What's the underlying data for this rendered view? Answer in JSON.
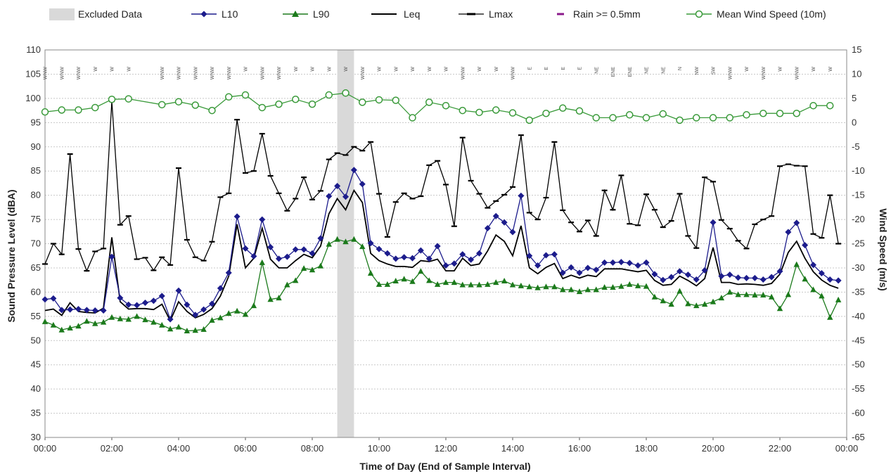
{
  "chart_data": {
    "type": "line",
    "xlabel": "Time of Day (End of Sample Interval)",
    "ylabel": "Sound Pressure Level (dBA)",
    "y2label": "Wind Speed (m/s)",
    "x_range_hours": [
      0,
      24
    ],
    "ylim": [
      30,
      110
    ],
    "y2lim": [
      -65,
      15
    ],
    "grid": true,
    "legend_position": "top",
    "x_tick_labels": [
      "00:00",
      "02:00",
      "04:00",
      "06:00",
      "08:00",
      "10:00",
      "12:00",
      "14:00",
      "16:00",
      "18:00",
      "20:00",
      "22:00",
      "00:00"
    ],
    "y_tick_labels": [
      "30",
      "35",
      "40",
      "45",
      "50",
      "55",
      "60",
      "65",
      "70",
      "75",
      "80",
      "85",
      "90",
      "95",
      "100",
      "105",
      "110"
    ],
    "y2_tick_labels": [
      "-65",
      "-60",
      "-55",
      "-50",
      "-45",
      "-40",
      "-35",
      "-30",
      "-25",
      "-20",
      "-15",
      "-10",
      "-5",
      "0",
      "5",
      "10",
      "15"
    ],
    "excluded_range_hours": [
      8.75,
      9.25
    ],
    "series": [
      {
        "name": "Excluded Data",
        "kind": "band",
        "color": "#d9d9d9"
      },
      {
        "name": "L10",
        "kind": "line",
        "marker": "diamond",
        "color": "#1c1c8c",
        "x": [
          0,
          0.25,
          0.5,
          0.75,
          1,
          1.25,
          1.5,
          1.75,
          2,
          2.25,
          2.5,
          2.75,
          3,
          3.25,
          3.5,
          3.75,
          4,
          4.25,
          4.5,
          4.75,
          5,
          5.25,
          5.5,
          5.75,
          6,
          6.25,
          6.5,
          6.75,
          7,
          7.25,
          7.5,
          7.75,
          8,
          8.25,
          8.5,
          8.75,
          9,
          9.25,
          9.5,
          9.75,
          10,
          10.25,
          10.5,
          10.75,
          11,
          11.25,
          11.5,
          11.75,
          12,
          12.25,
          12.5,
          12.75,
          13,
          13.25,
          13.5,
          13.75,
          14,
          14.25,
          14.5,
          14.75,
          15,
          15.25,
          15.5,
          15.75,
          16,
          16.25,
          16.5,
          16.75,
          17,
          17.25,
          17.5,
          17.75,
          18,
          18.25,
          18.5,
          18.75,
          19,
          19.25,
          19.5,
          19.75,
          20,
          20.25,
          20.5,
          20.75,
          21,
          21.25,
          21.5,
          21.75,
          22,
          22.25,
          22.5,
          22.75,
          23,
          23.25,
          23.5,
          23.75
        ],
        "values": [
          58.5,
          58.7,
          56.3,
          56.4,
          56.5,
          56.3,
          56.2,
          56.2,
          67.3,
          58.8,
          57.4,
          57.3,
          57.8,
          58.2,
          59.2,
          54.4,
          60.3,
          57.4,
          55.3,
          56.4,
          57.6,
          60.8,
          64.0,
          75.6,
          69.0,
          67.4,
          75.0,
          69.3,
          66.9,
          67.3,
          68.8,
          68.8,
          68.0,
          71.1,
          79.8,
          81.9,
          79.7,
          85.2,
          82.3,
          70.1,
          68.9,
          68.0,
          66.9,
          67.2,
          67.0,
          68.6,
          66.9,
          69.5,
          65.5,
          65.9,
          67.8,
          66.7,
          68.0,
          73.2,
          75.7,
          74.4,
          72.4,
          79.9,
          67.5,
          65.5,
          67.6,
          67.8,
          64.0,
          65.1,
          64.0,
          65.0,
          64.6,
          66.1,
          66.1,
          66.2,
          66.0,
          65.5,
          66.1,
          63.7,
          62.5,
          63.1,
          64.3,
          63.6,
          62.6,
          64.5,
          74.4,
          63.3,
          63.6,
          63.0,
          62.9,
          62.9,
          62.6,
          63.1,
          64.3,
          72.4,
          74.3,
          69.7,
          65.6,
          63.9,
          62.6,
          62.4
        ]
      },
      {
        "name": "L90",
        "kind": "line",
        "marker": "triangle",
        "color": "#1b7a1b",
        "x": [
          0,
          0.25,
          0.5,
          0.75,
          1,
          1.25,
          1.5,
          1.75,
          2,
          2.25,
          2.5,
          2.75,
          3,
          3.25,
          3.5,
          3.75,
          4,
          4.25,
          4.5,
          4.75,
          5,
          5.25,
          5.5,
          5.75,
          6,
          6.25,
          6.5,
          6.75,
          7,
          7.25,
          7.5,
          7.75,
          8,
          8.25,
          8.5,
          8.75,
          9,
          9.25,
          9.5,
          9.75,
          10,
          10.25,
          10.5,
          10.75,
          11,
          11.25,
          11.5,
          11.75,
          12,
          12.25,
          12.5,
          12.75,
          13,
          13.25,
          13.5,
          13.75,
          14,
          14.25,
          14.5,
          14.75,
          15,
          15.25,
          15.5,
          15.75,
          16,
          16.25,
          16.5,
          16.75,
          17,
          17.25,
          17.5,
          17.75,
          18,
          18.25,
          18.5,
          18.75,
          19,
          19.25,
          19.5,
          19.75,
          20,
          20.25,
          20.5,
          20.75,
          21,
          21.25,
          21.5,
          21.75,
          22,
          22.25,
          22.5,
          22.75,
          23,
          23.25,
          23.5,
          23.75
        ],
        "values": [
          53.9,
          53.2,
          52.2,
          52.6,
          53.0,
          54.0,
          53.5,
          53.8,
          54.8,
          54.5,
          54.4,
          55.0,
          54.3,
          53.8,
          53.2,
          52.4,
          52.8,
          52.0,
          52.1,
          52.3,
          54.2,
          54.7,
          55.6,
          56.1,
          55.4,
          57.2,
          66.1,
          58.5,
          58.8,
          61.5,
          62.4,
          64.9,
          64.6,
          65.4,
          69.9,
          70.9,
          70.4,
          70.9,
          69.4,
          63.9,
          61.6,
          61.6,
          62.3,
          62.7,
          62.2,
          64.3,
          62.4,
          61.6,
          62.0,
          62.0,
          61.5,
          61.5,
          61.5,
          61.6,
          62.0,
          62.3,
          61.5,
          61.3,
          61.1,
          60.9,
          61.1,
          61.1,
          60.5,
          60.5,
          60.1,
          60.5,
          60.5,
          61.0,
          61.0,
          61.2,
          61.6,
          61.3,
          61.2,
          59.0,
          58.2,
          57.5,
          60.2,
          57.6,
          57.2,
          57.5,
          58.0,
          58.8,
          60.0,
          59.5,
          59.5,
          59.4,
          59.4,
          59.0,
          56.6,
          59.5,
          65.7,
          62.7,
          60.5,
          59.2,
          54.8,
          58.4
        ]
      },
      {
        "name": "Leq",
        "kind": "line",
        "marker": "none",
        "color": "#000000",
        "x": [
          0,
          0.25,
          0.5,
          0.75,
          1,
          1.25,
          1.5,
          1.75,
          2,
          2.25,
          2.5,
          2.75,
          3,
          3.25,
          3.5,
          3.75,
          4,
          4.25,
          4.5,
          4.75,
          5,
          5.25,
          5.5,
          5.75,
          6,
          6.25,
          6.5,
          6.75,
          7,
          7.25,
          7.5,
          7.75,
          8,
          8.25,
          8.5,
          8.75,
          9,
          9.25,
          9.5,
          9.75,
          10,
          10.25,
          10.5,
          10.75,
          11,
          11.25,
          11.5,
          11.75,
          12,
          12.25,
          12.5,
          12.75,
          13,
          13.25,
          13.5,
          13.75,
          14,
          14.25,
          14.5,
          14.75,
          15,
          15.25,
          15.5,
          15.75,
          16,
          16.25,
          16.5,
          16.75,
          17,
          17.25,
          17.5,
          17.75,
          18,
          18.25,
          18.5,
          18.75,
          19,
          19.25,
          19.5,
          19.75,
          20,
          20.25,
          20.5,
          20.75,
          21,
          21.25,
          21.5,
          21.75,
          22,
          22.25,
          22.5,
          22.75,
          23,
          23.25,
          23.5,
          23.75
        ],
        "values": [
          56.2,
          56.5,
          55.2,
          57.8,
          56.0,
          55.8,
          55.7,
          56.7,
          71.3,
          58.0,
          56.5,
          56.6,
          56.6,
          56.4,
          57.5,
          54.1,
          58.0,
          56.0,
          54.7,
          55.4,
          56.6,
          59.2,
          63.3,
          74.0,
          65.0,
          67.0,
          73.2,
          66.8,
          65.0,
          65.0,
          66.5,
          67.8,
          67.1,
          69.5,
          76.2,
          79.3,
          77.0,
          81.0,
          78.5,
          68.0,
          66.5,
          65.8,
          65.3,
          65.3,
          65.1,
          66.5,
          66.3,
          66.8,
          64.4,
          64.4,
          67.0,
          65.5,
          65.8,
          68.5,
          71.8,
          70.5,
          67.5,
          73.7,
          65.0,
          63.8,
          65.1,
          65.9,
          62.8,
          63.5,
          62.9,
          63.5,
          63.2,
          64.8,
          64.8,
          64.8,
          64.5,
          64.2,
          64.5,
          62.4,
          61.4,
          61.6,
          63.3,
          62.4,
          61.3,
          62.8,
          69.2,
          62.0,
          62.0,
          61.6,
          61.7,
          61.6,
          61.4,
          61.8,
          63.7,
          68.2,
          70.5,
          67.0,
          64.2,
          62.5,
          61.4,
          60.8
        ]
      },
      {
        "name": "Lmax",
        "kind": "line",
        "marker": "dash",
        "color": "#000000",
        "x": [
          0,
          0.25,
          0.5,
          0.75,
          1,
          1.25,
          1.5,
          1.75,
          2,
          2.25,
          2.5,
          2.75,
          3,
          3.25,
          3.5,
          3.75,
          4,
          4.25,
          4.5,
          4.75,
          5,
          5.25,
          5.5,
          5.75,
          6,
          6.25,
          6.5,
          6.75,
          7,
          7.25,
          7.5,
          7.75,
          8,
          8.25,
          8.5,
          8.75,
          9,
          9.25,
          9.5,
          9.75,
          10,
          10.25,
          10.5,
          10.75,
          11,
          11.25,
          11.5,
          11.75,
          12,
          12.25,
          12.5,
          12.75,
          13,
          13.25,
          13.5,
          13.75,
          14,
          14.25,
          14.5,
          14.75,
          15,
          15.25,
          15.5,
          15.75,
          16,
          16.25,
          16.5,
          16.75,
          17,
          17.25,
          17.5,
          17.75,
          18,
          18.25,
          18.5,
          18.75,
          19,
          19.25,
          19.5,
          19.75,
          20,
          20.25,
          20.5,
          20.75,
          21,
          21.25,
          21.5,
          21.75,
          22,
          22.25,
          22.5,
          22.75,
          23,
          23.25,
          23.5,
          23.75
        ],
        "values": [
          65.8,
          70.0,
          67.8,
          88.5,
          68.9,
          64.4,
          68.4,
          69.0,
          99.4,
          73.9,
          75.7,
          66.8,
          67.1,
          64.5,
          67.2,
          65.6,
          85.6,
          70.8,
          67.2,
          66.5,
          70.4,
          79.6,
          80.4,
          95.6,
          84.6,
          85.0,
          92.7,
          84.0,
          80.4,
          76.8,
          79.3,
          83.7,
          79.1,
          80.9,
          87.4,
          88.7,
          88.3,
          90.0,
          89.2,
          91.0,
          80.3,
          71.4,
          78.6,
          80.4,
          79.3,
          79.8,
          86.2,
          87.1,
          82.2,
          73.6,
          91.9,
          83.0,
          80.3,
          77.4,
          78.8,
          80.1,
          81.7,
          92.4,
          76.4,
          75.0,
          79.5,
          91.0,
          76.9,
          74.4,
          72.5,
          74.8,
          71.6,
          81.0,
          77.0,
          84.1,
          74.1,
          73.8,
          80.2,
          77.0,
          73.4,
          74.7,
          80.3,
          71.6,
          69.1,
          83.7,
          82.8,
          74.9,
          73.1,
          70.6,
          69.0,
          74.0,
          75.0,
          75.7,
          86.0,
          86.4,
          86.1,
          86.0,
          72.0,
          71.2,
          80.0,
          70.0
        ]
      },
      {
        "name": "Rain >= 0.5mm",
        "kind": "marker",
        "color": "#8b1a8b",
        "values": []
      },
      {
        "name": "Mean Wind Speed (10m)",
        "kind": "line",
        "marker": "circle",
        "axis": "right",
        "color": "#3a9a3a",
        "x": [
          0,
          0.5,
          1,
          1.5,
          2,
          2.5,
          3.5,
          4,
          4.5,
          5,
          5.5,
          6,
          6.5,
          7,
          7.5,
          8,
          8.5,
          9,
          9.5,
          10,
          10.5,
          11,
          11.5,
          12,
          12.5,
          13,
          13.5,
          14,
          14.5,
          15,
          15.5,
          16,
          16.5,
          17,
          17.5,
          18,
          18.5,
          19,
          19.5,
          20,
          20.5,
          21,
          21.5,
          22,
          22.5,
          23,
          23.5
        ],
        "values": [
          2.2,
          2.6,
          2.6,
          3.1,
          4.8,
          4.9,
          3.7,
          4.3,
          3.6,
          2.5,
          5.3,
          5.7,
          3.1,
          3.8,
          4.8,
          3.8,
          5.7,
          6.1,
          4.2,
          4.7,
          4.6,
          1.0,
          4.2,
          3.5,
          2.5,
          2.1,
          2.6,
          2.0,
          0.5,
          1.9,
          3.0,
          2.4,
          1.0,
          1.0,
          1.6,
          1.0,
          1.8,
          0.5,
          1.0,
          1.0,
          1.0,
          1.6,
          1.9,
          1.9,
          1.9,
          3.5,
          3.5
        ]
      }
    ],
    "wind_directions": {
      "x": [
        0,
        0.5,
        1,
        1.5,
        2,
        2.5,
        3.5,
        4,
        4.5,
        5,
        5.5,
        6,
        6.5,
        7,
        7.5,
        8,
        8.5,
        9,
        9.5,
        10,
        10.5,
        11,
        11.5,
        12,
        12.5,
        13,
        13.5,
        14,
        14.5,
        15,
        15.5,
        16,
        16.5,
        17,
        17.5,
        18,
        18.5,
        19,
        19.5,
        20,
        20.5,
        21,
        21.5,
        22,
        22.5,
        23,
        23.5
      ],
      "labels": [
        "WNW",
        "WNW",
        "WNW",
        "W",
        "W",
        "W",
        "WNW",
        "WNW",
        "WNW",
        "WNW",
        "WNW",
        "W",
        "WNW",
        "WNW",
        "W",
        "W",
        "W",
        "W",
        "WNW",
        "W",
        "W",
        "W",
        "W",
        "W",
        "WNW",
        "W",
        "W",
        "WNW",
        "E",
        "E",
        "E",
        "E",
        "NE",
        "ENE",
        "ENE",
        "NE",
        "NE",
        "N",
        "NW",
        "SW",
        "WNW",
        "W",
        "WNW",
        "W",
        "WNW",
        "W",
        "W"
      ]
    }
  }
}
